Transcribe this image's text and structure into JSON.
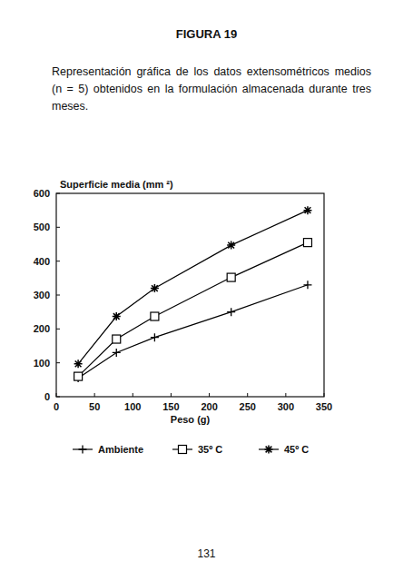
{
  "page": {
    "heading": "FIGURA 19",
    "caption": "Representación gráfica de los datos extensométricos medios (n = 5) obtenidos en la formulación almacenada durante tres meses.",
    "page_number": "131"
  },
  "chart_data": {
    "type": "line",
    "y_label": "Superficie media (mm ²)",
    "x_label": "Peso (g)",
    "x": [
      28.6,
      78.6,
      128.6,
      228.6,
      328.6
    ],
    "series": [
      {
        "name": "Ambiente",
        "color": "#000000",
        "marker": "plus",
        "values": [
          55,
          130,
          175,
          250,
          330
        ]
      },
      {
        "name": "35º C",
        "color": "#000000",
        "marker": "square",
        "values": [
          60,
          170,
          237,
          352,
          455
        ]
      },
      {
        "name": "45º C",
        "color": "#000000",
        "marker": "star",
        "values": [
          97,
          237,
          320,
          447,
          550
        ]
      }
    ],
    "xlim": [
      0,
      350
    ],
    "xticks": [
      0,
      50,
      100,
      150,
      200,
      250,
      300,
      350
    ],
    "ylim": [
      0,
      600
    ],
    "yticks": [
      0,
      100,
      200,
      300,
      400,
      500,
      600
    ],
    "grid": false,
    "legend": "bottom"
  }
}
